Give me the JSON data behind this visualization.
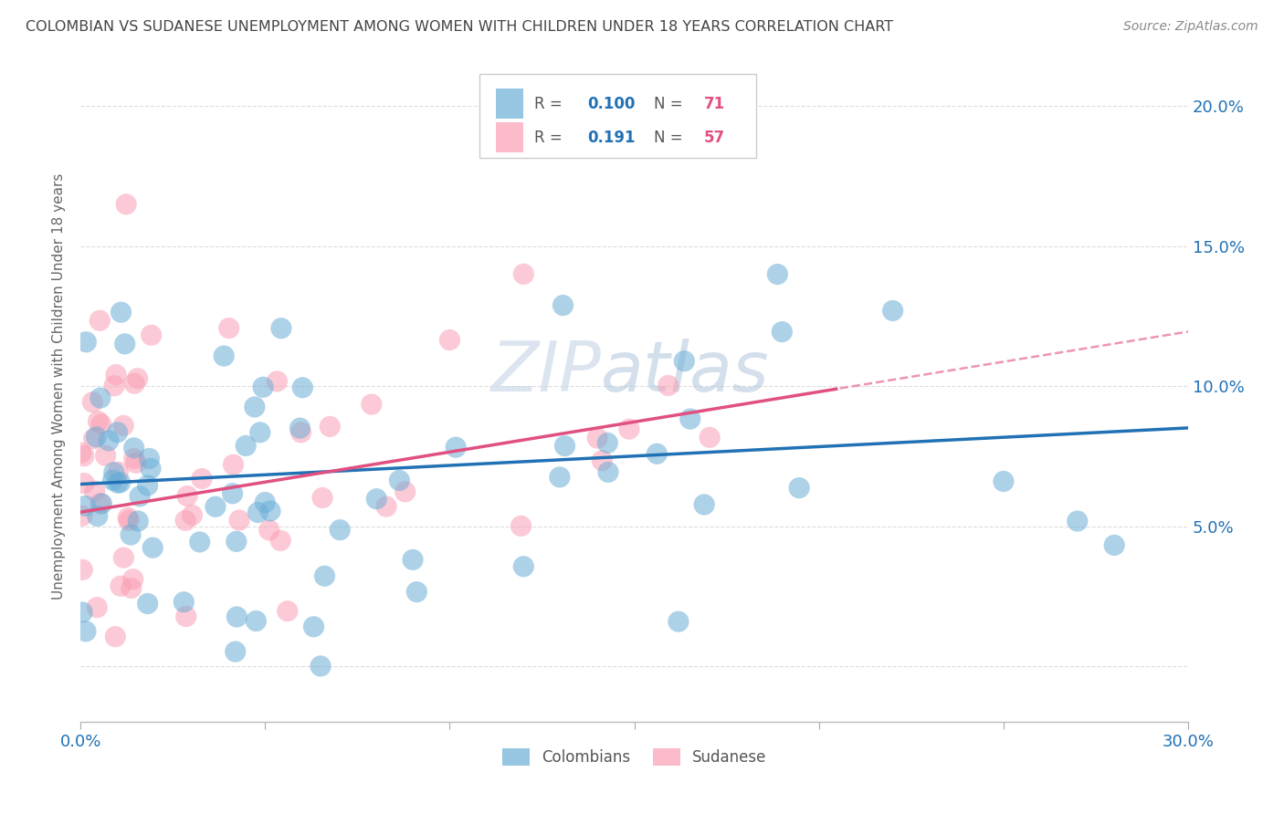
{
  "title": "COLOMBIAN VS SUDANESE UNEMPLOYMENT AMONG WOMEN WITH CHILDREN UNDER 18 YEARS CORRELATION CHART",
  "source": "Source: ZipAtlas.com",
  "ylabel": "Unemployment Among Women with Children Under 18 years",
  "xlim": [
    0.0,
    0.3
  ],
  "ylim": [
    -0.02,
    0.22
  ],
  "colombian_R": 0.1,
  "colombian_N": 71,
  "sudanese_R": 0.191,
  "sudanese_N": 57,
  "colombian_color": "#6baed6",
  "sudanese_color": "#fa9fb5",
  "colombian_line_color": "#2171b5",
  "sudanese_line_color": "#e05080",
  "background_color": "#ffffff",
  "grid_color": "#dddddd",
  "watermark_zip": "ZIP",
  "watermark_atlas": "atlas",
  "watermark_color_zip": "#c8d8e8",
  "watermark_color_atlas": "#a8c0d8",
  "legend_R_color": "#2171b5",
  "legend_N_color": "#e05080",
  "title_color": "#444444",
  "source_color": "#888888",
  "axis_color": "#2171b5",
  "ylabel_color": "#666666"
}
